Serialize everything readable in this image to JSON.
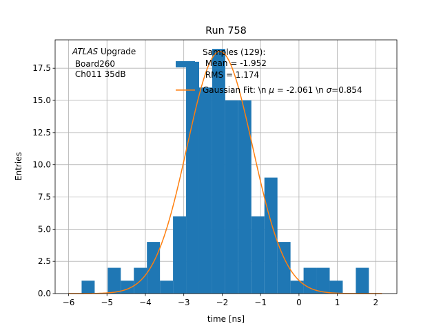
{
  "chart_data": {
    "type": "histogram",
    "title": "Run 758",
    "xlabel": "time [ns]",
    "ylabel": "Entries",
    "xlim": [
      -6.35,
      2.55
    ],
    "ylim": [
      0,
      19.7
    ],
    "grid": true,
    "x_ticks": [
      -6,
      -5,
      -4,
      -3,
      -2,
      -1,
      0,
      1,
      2
    ],
    "x_tick_labels": [
      "−6",
      "−5",
      "−4",
      "−3",
      "−2",
      "−1",
      "0",
      "1",
      "2"
    ],
    "y_ticks": [
      0,
      2.5,
      5,
      7.5,
      10,
      12.5,
      15,
      17.5
    ],
    "y_tick_labels": [
      "0.0",
      "2.5",
      "5.0",
      "7.5",
      "10.0",
      "12.5",
      "15.0",
      "17.5"
    ],
    "bin_edges": [
      -6.0,
      -5.66,
      -5.32,
      -4.98,
      -4.64,
      -4.3,
      -3.96,
      -3.62,
      -3.28,
      -2.94,
      -2.6,
      -2.26,
      -1.92,
      -1.58,
      -1.24,
      -0.9,
      -0.56,
      -0.22,
      0.12,
      0.46,
      0.8,
      1.14,
      1.48,
      1.82,
      2.16
    ],
    "counts": [
      0,
      1,
      0,
      2,
      1,
      2,
      4,
      1,
      6,
      18,
      16,
      19,
      15,
      15,
      6,
      9,
      4,
      1,
      2,
      2,
      1,
      0,
      2,
      0
    ],
    "bar_color": "#1f77b4",
    "fit_color": "#ff7f0e",
    "fit": {
      "mu": -2.061,
      "sigma": 0.854,
      "amplitude": 18.8
    },
    "series": [
      {
        "name": "Samples (129):\n Mean = -1.952\n RMS = 1.174",
        "kind": "histogram"
      },
      {
        "name": "Gaussian Fit: \\n $\\mu$ = -2.061 \\n $\\sigma$=0.854",
        "kind": "line"
      }
    ],
    "legend": {
      "placement": "top-center",
      "samples_lines": [
        "Samples (129):",
        " Mean = -1.952",
        " RMS = 1.174"
      ],
      "fit_parts": [
        "Gaussian Fit: \\n ",
        "μ",
        " = -2.061 \\n ",
        "σ",
        "=0.854"
      ]
    },
    "annotation": {
      "lines": [
        "ATLAS",
        " Upgrade",
        " Board260",
        " Ch011 35dB"
      ]
    }
  }
}
